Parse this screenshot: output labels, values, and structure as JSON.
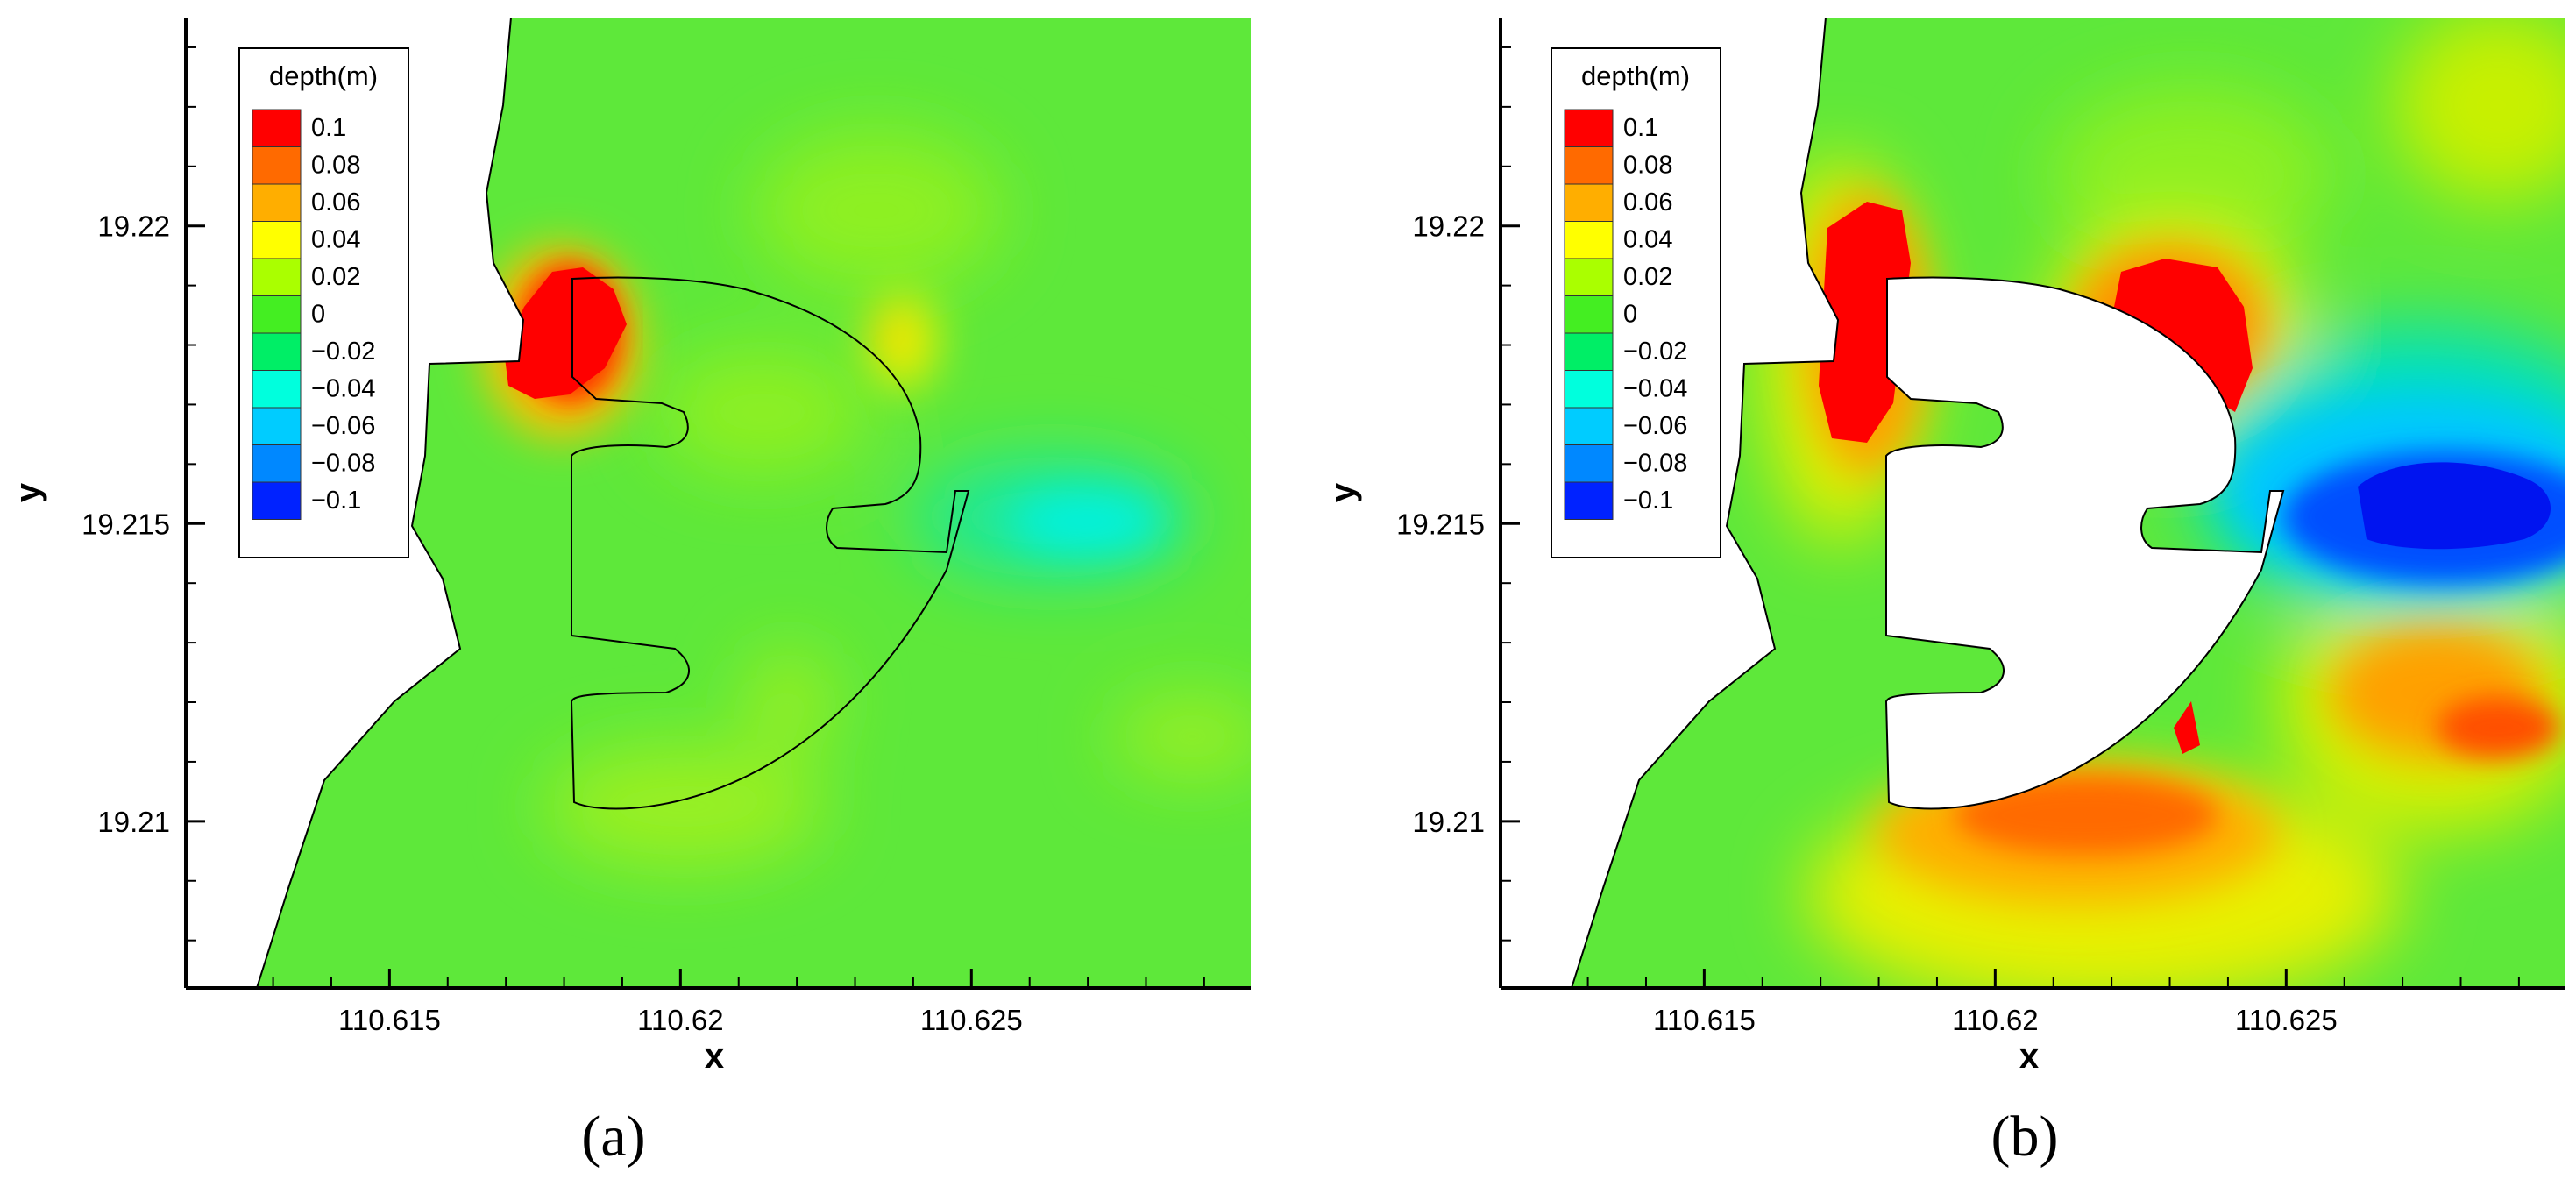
{
  "chart_data": [
    {
      "type": "heatmap",
      "panel_label": "(a)",
      "xlabel": "x",
      "ylabel": "y",
      "xlim": [
        110.6115,
        110.6298
      ],
      "ylim": [
        19.2072,
        19.2235
      ],
      "xticks": [
        110.615,
        110.62,
        110.625
      ],
      "xtick_labels": [
        "110.615",
        "110.62",
        "110.625"
      ],
      "yticks": [
        19.21,
        19.215,
        19.22
      ],
      "ytick_labels": [
        "19.21",
        "19.215",
        "19.22"
      ],
      "legend": {
        "title": "depth(m)",
        "placement": "top-left",
        "levels": [
          "0.1",
          "0.08",
          "0.06",
          "0.04",
          "0.02",
          "0",
          "−0.02",
          "−0.04",
          "−0.06",
          "−0.08",
          "−0.1"
        ],
        "colors": [
          "#ff0000",
          "#ff6a00",
          "#ffae00",
          "#ffff00",
          "#aaff00",
          "#44ee22",
          "#00ee66",
          "#00ffdd",
          "#00ccff",
          "#0088ff",
          "#0022ff"
        ]
      },
      "structure_outline": "black line",
      "max_depth_change_region": "red patch near x 110.618-110.619, y 19.217-19.219"
    },
    {
      "type": "heatmap",
      "panel_label": "(b)",
      "xlabel": "x",
      "ylabel": "y",
      "xlim": [
        110.6115,
        110.6298
      ],
      "ylim": [
        19.2072,
        19.2235
      ],
      "xticks": [
        110.615,
        110.62,
        110.625
      ],
      "xtick_labels": [
        "110.615",
        "110.62",
        "110.625"
      ],
      "yticks": [
        19.21,
        19.215,
        19.22
      ],
      "ytick_labels": [
        "19.21",
        "19.215",
        "19.22"
      ],
      "legend": {
        "title": "depth(m)",
        "placement": "top-left",
        "levels": [
          "0.1",
          "0.08",
          "0.06",
          "0.04",
          "0.02",
          "0",
          "−0.02",
          "−0.04",
          "−0.06",
          "−0.08",
          "−0.1"
        ],
        "colors": [
          "#ff0000",
          "#ff6a00",
          "#ffae00",
          "#ffff00",
          "#aaff00",
          "#44ee22",
          "#00ee66",
          "#00ffdd",
          "#00ccff",
          "#0088ff",
          "#0022ff"
        ]
      },
      "structure_outline": "white filled island",
      "max_depth_change_region": "red patches beside island, deep blue east of entrance"
    }
  ]
}
